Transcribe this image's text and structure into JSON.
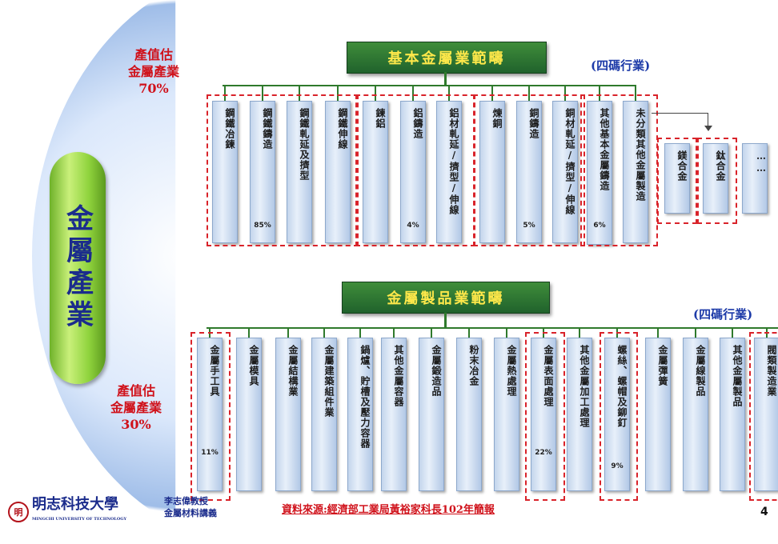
{
  "center_label": "金屬產業",
  "top_share": [
    "產值估",
    "金屬產業",
    "70%"
  ],
  "bottom_share": [
    "產值估",
    "金屬產業",
    "30%"
  ],
  "basic": {
    "title": "基本金屬業範疇",
    "code_note": "(四碼行業)",
    "columns": [
      {
        "label": "鋼鐵冶鍊",
        "share": ""
      },
      {
        "label": "鋼鐵鑄造",
        "share": "85%"
      },
      {
        "label": "鋼鐵軋延及擠型",
        "share": ""
      },
      {
        "label": "鋼鐵伸線",
        "share": ""
      },
      {
        "label": "鍊鋁",
        "share": ""
      },
      {
        "label": "鋁鑄造",
        "share": "4%"
      },
      {
        "label": "鋁材軋延/擠型/伸線",
        "share": ""
      },
      {
        "label": "煉銅",
        "share": ""
      },
      {
        "label": "銅鑄造",
        "share": "5%"
      },
      {
        "label": "銅材軋延/擠型/伸線",
        "share": ""
      },
      {
        "label": "其他基本金屬鑄造",
        "share": "6%"
      },
      {
        "label": "未分類其他金屬製造",
        "share": ""
      }
    ],
    "sub_columns": [
      {
        "label": "鎂合金"
      },
      {
        "label": "鈦合金"
      },
      {
        "label": "……"
      }
    ]
  },
  "products": {
    "title": "金屬製品業範疇",
    "code_note": "(四碼行業)",
    "columns": [
      {
        "label": "金屬手工具",
        "share": "11%"
      },
      {
        "label": "金屬模具",
        "share": ""
      },
      {
        "label": "金屬結構業",
        "share": ""
      },
      {
        "label": "金屬建築組件業",
        "share": ""
      },
      {
        "label": "鍋爐、貯槽及壓力容器",
        "share": ""
      },
      {
        "label": "其他金屬容器",
        "share": ""
      },
      {
        "label": "金屬鍛造品",
        "share": ""
      },
      {
        "label": "粉末冶金",
        "share": ""
      },
      {
        "label": "金屬熱處理",
        "share": ""
      },
      {
        "label": "金屬表面處理",
        "share": "22%"
      },
      {
        "label": "其他金屬加工處理",
        "share": ""
      },
      {
        "label": "螺絲、螺帽及鉚釘",
        "share": "9%"
      },
      {
        "label": "金屬彈簧",
        "share": ""
      },
      {
        "label": "金屬線製品",
        "share": ""
      },
      {
        "label": "其他金屬製品",
        "share": ""
      },
      {
        "label": "閥類製造業",
        "share": ""
      }
    ]
  },
  "footer": {
    "school": "明志科技大學",
    "school_en": "MINGCHI UNIVERSITY OF TECHNOLOGY",
    "logo_char": "明",
    "lab_line1": "李志偉教授",
    "lab_line2": "金屬材料講義",
    "source": "資料來源:經濟部工業局黃裕家科長102年簡報",
    "page_number": "4"
  },
  "colors": {
    "highlight_dash": "#d9232a",
    "banner": "#2f7a2c",
    "accent_text": "#d0121b",
    "navy": "#1b2c8c"
  }
}
